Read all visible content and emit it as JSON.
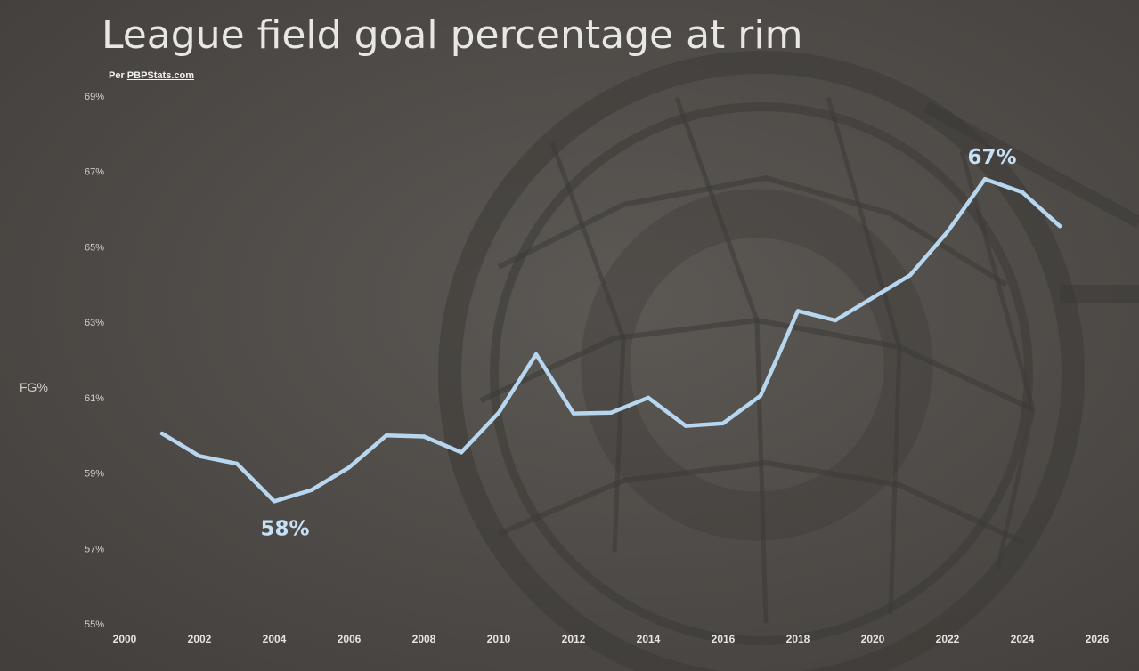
{
  "header": {
    "title": "League field goal percentage at rim",
    "source_prefix": "Per ",
    "source_link": "PBPStats.com"
  },
  "colors": {
    "background": "#514d49",
    "line": "#b7d6ef",
    "annotation": "#c6e0f5",
    "tick_text": "#d4d1cc"
  },
  "chart_data": {
    "type": "line",
    "title": "League field goal percentage at rim",
    "subtitle": "Per PBPStats.com",
    "xlabel": "",
    "ylabel": "FG%",
    "xlim": [
      2000,
      2026
    ],
    "ylim": [
      55,
      69
    ],
    "x_ticks": [
      "2000",
      "2002",
      "2004",
      "2006",
      "2008",
      "2010",
      "2012",
      "2014",
      "2016",
      "2018",
      "2020",
      "2022",
      "2024",
      "2026"
    ],
    "y_ticks": [
      "55%",
      "57%",
      "59%",
      "61%",
      "63%",
      "65%",
      "67%",
      "69%"
    ],
    "grid": false,
    "legend": "none",
    "series": [
      {
        "x": [
          2001,
          2002,
          2003,
          2004,
          2005,
          2006,
          2007,
          2008,
          2009,
          2010,
          2011,
          2012,
          2013,
          2014,
          2015,
          2016,
          2017,
          2018,
          2019,
          2020,
          2021,
          2022,
          2023,
          2024,
          2025
        ],
        "values": [
          60.05,
          59.45,
          59.25,
          58.25,
          58.55,
          59.15,
          60.0,
          59.97,
          59.55,
          60.6,
          62.15,
          60.58,
          60.6,
          61.0,
          60.25,
          60.32,
          61.05,
          63.3,
          63.05,
          63.65,
          64.25,
          65.4,
          66.8,
          66.45,
          65.55
        ]
      }
    ],
    "annotations": [
      {
        "text": "58%",
        "x": 2004,
        "y": 58.25
      },
      {
        "text": "67%",
        "x": 2023,
        "y": 66.8
      }
    ]
  }
}
